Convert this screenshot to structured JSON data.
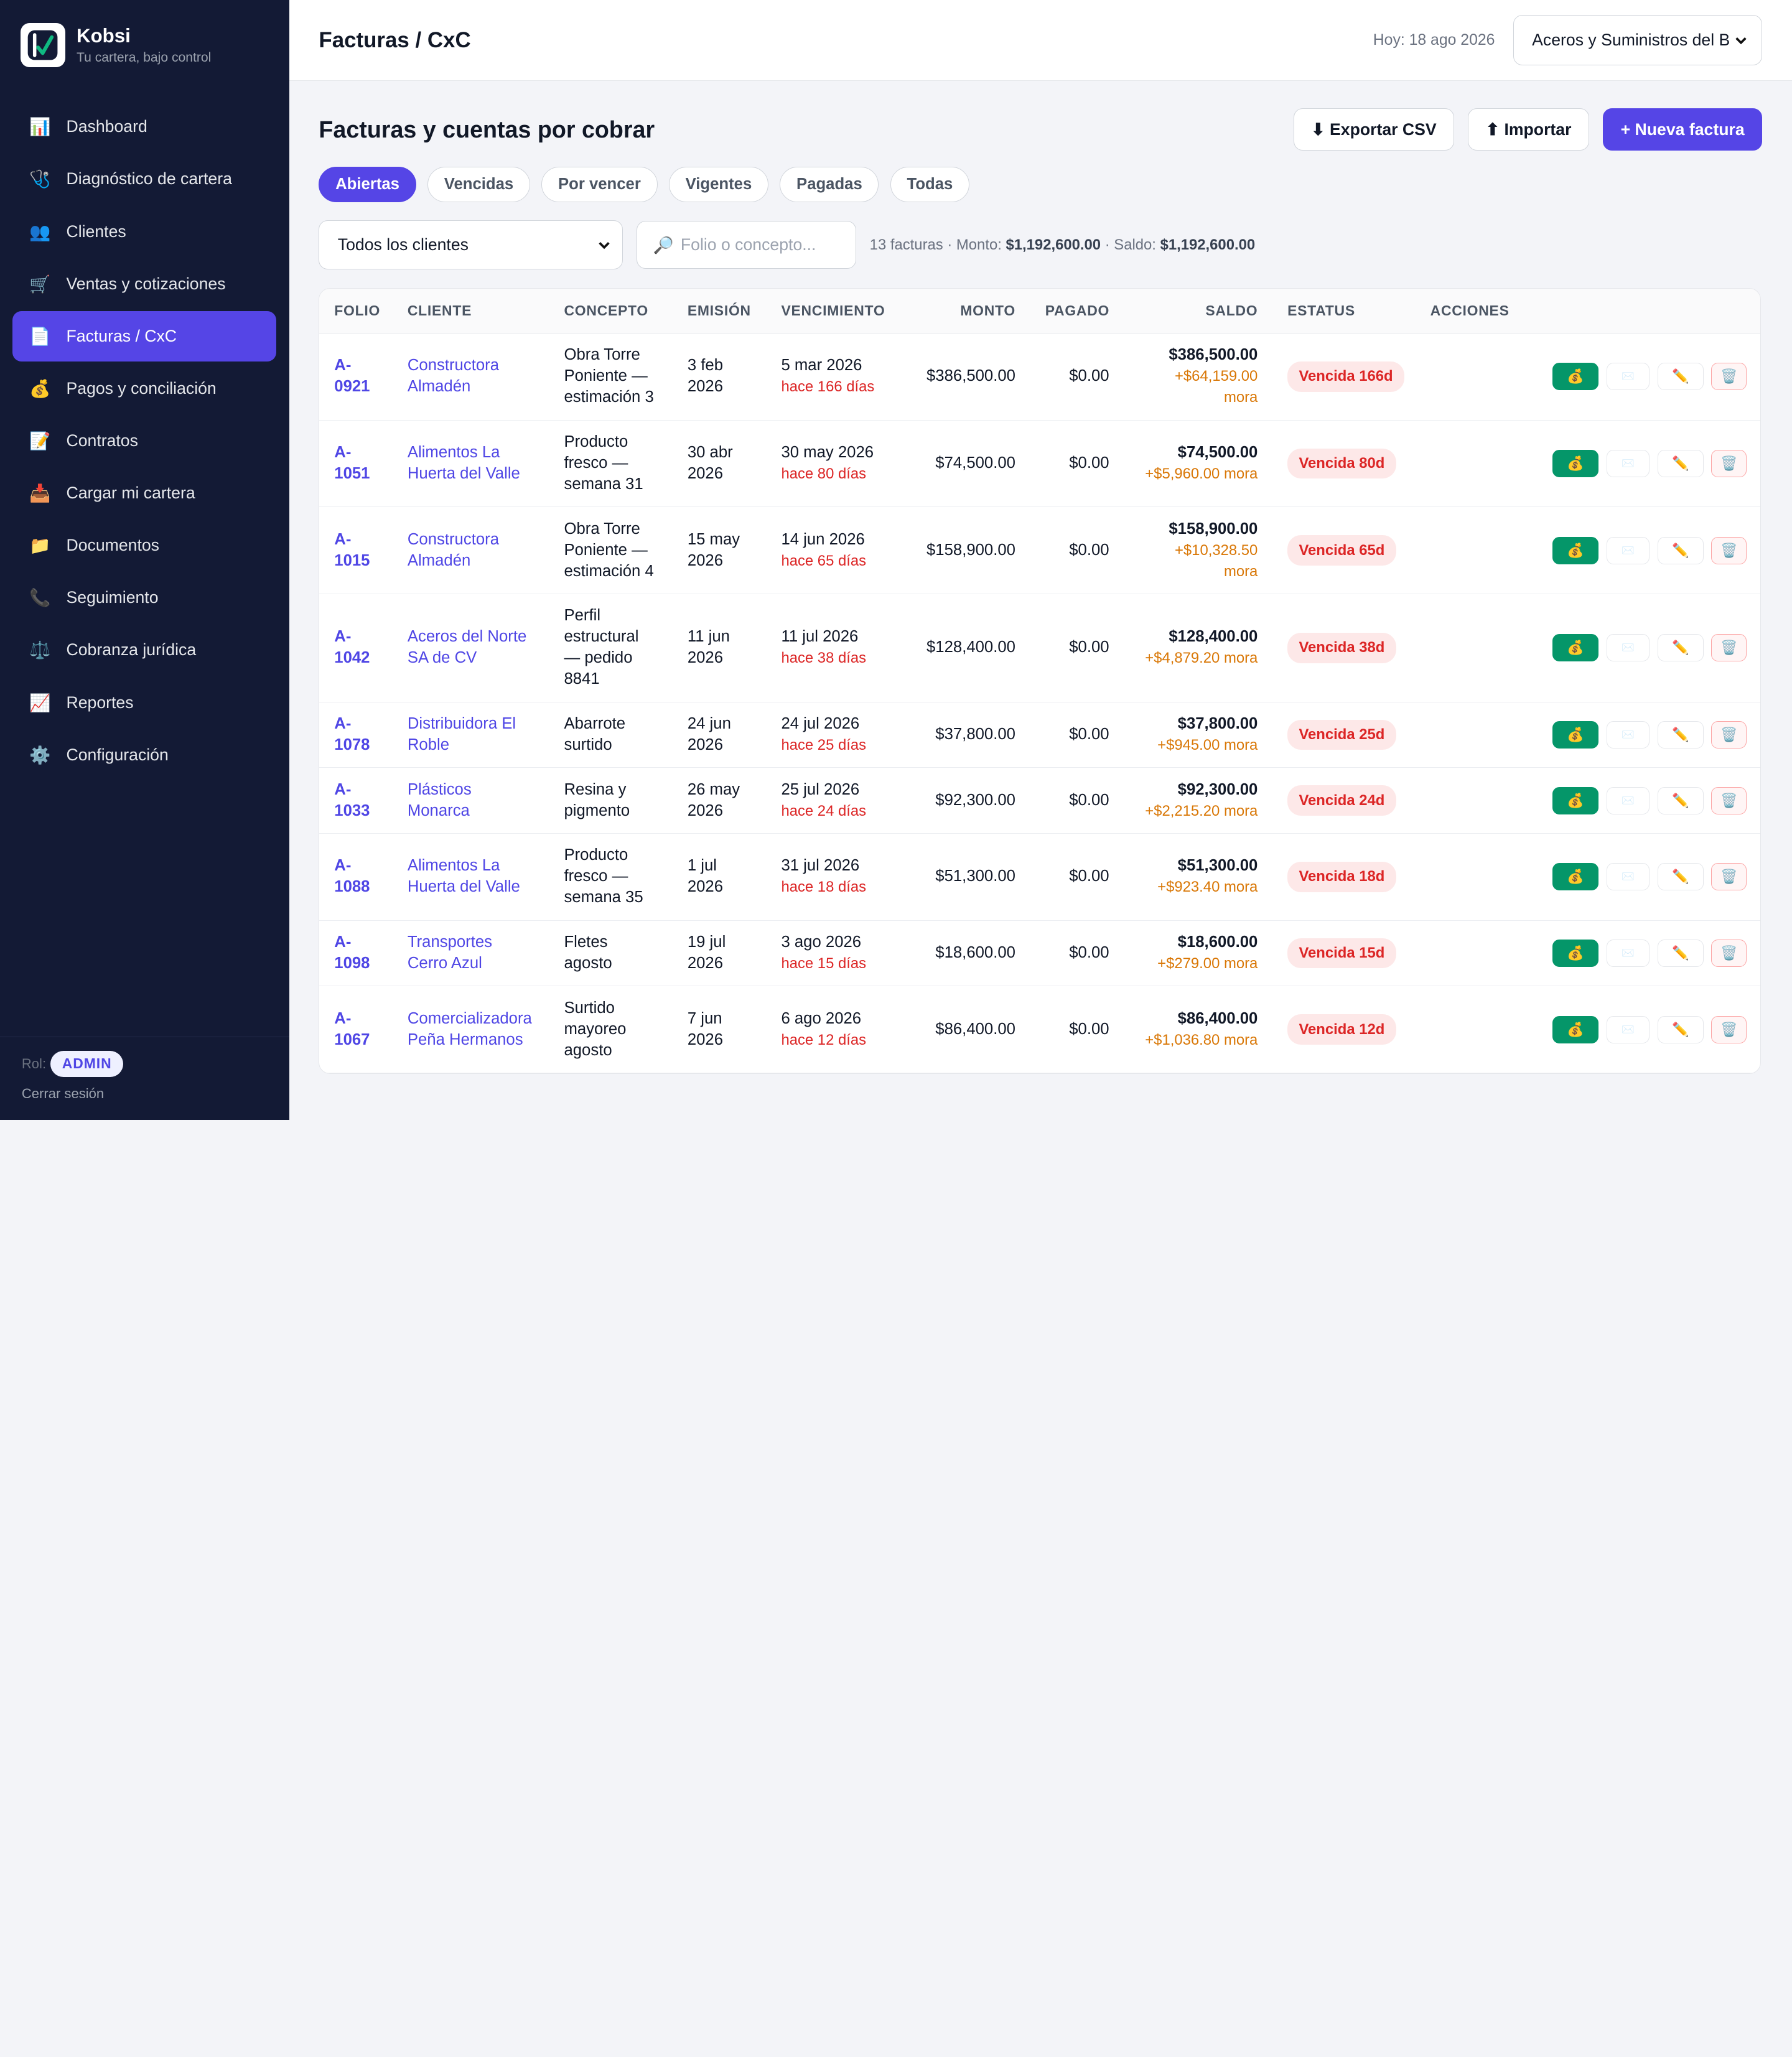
{
  "app": {
    "name": "Kobsi",
    "tagline": "Tu cartera, bajo control"
  },
  "sidebar": {
    "items": [
      {
        "label": "Dashboard",
        "icon": "📊",
        "icon_name": "bar-chart-icon",
        "active": false
      },
      {
        "label": "Diagnóstico de cartera",
        "icon": "🩺",
        "icon_name": "stethoscope-icon",
        "active": false
      },
      {
        "label": "Clientes",
        "icon": "👥",
        "icon_name": "users-icon",
        "active": false
      },
      {
        "label": "Ventas y cotizaciones",
        "icon": "🛒",
        "icon_name": "cart-icon",
        "active": false
      },
      {
        "label": "Facturas / CxC",
        "icon": "📄",
        "icon_name": "invoice-icon",
        "active": true
      },
      {
        "label": "Pagos y conciliación",
        "icon": "💰",
        "icon_name": "money-bag-icon",
        "active": false
      },
      {
        "label": "Contratos",
        "icon": "📝",
        "icon_name": "contract-icon",
        "active": false
      },
      {
        "label": "Cargar mi cartera",
        "icon": "📥",
        "icon_name": "inbox-tray-icon",
        "active": false
      },
      {
        "label": "Documentos",
        "icon": "📁",
        "icon_name": "folder-icon",
        "active": false
      },
      {
        "label": "Seguimiento",
        "icon": "📞",
        "icon_name": "phone-icon",
        "active": false
      },
      {
        "label": "Cobranza jurídica",
        "icon": "⚖️",
        "icon_name": "scales-icon",
        "active": false
      },
      {
        "label": "Reportes",
        "icon": "📈",
        "icon_name": "line-chart-icon",
        "active": false
      },
      {
        "label": "Configuración",
        "icon": "⚙️",
        "icon_name": "gear-icon",
        "active": false
      }
    ],
    "footer": {
      "role_label": "Rol:",
      "role": "ADMIN",
      "logout": "Cerrar sesión"
    }
  },
  "topbar": {
    "title": "Facturas / CxC",
    "today": "Hoy: 18 ago 2026",
    "company": "Aceros y Suministros del B"
  },
  "page": {
    "title": "Facturas y cuentas por cobrar",
    "buttons": {
      "export": "⬇ Exportar CSV",
      "import": "⬆ Importar",
      "new": "+ Nueva factura"
    },
    "tabs": [
      {
        "label": "Abiertas",
        "active": true
      },
      {
        "label": "Vencidas",
        "active": false
      },
      {
        "label": "Por vencer",
        "active": false
      },
      {
        "label": "Vigentes",
        "active": false
      },
      {
        "label": "Pagadas",
        "active": false
      },
      {
        "label": "Todas",
        "active": false
      }
    ],
    "client_filter": "Todos los clientes",
    "search_placeholder": "Folio o concepto...",
    "summary": {
      "count": "13 facturas · Monto: ",
      "monto": "$1,192,600.00",
      "sep": " · Saldo: ",
      "saldo": "$1,192,600.00"
    }
  },
  "table": {
    "columns": [
      "FOLIO",
      "CLIENTE",
      "CONCEPTO",
      "EMISIÓN",
      "VENCIMIENTO",
      "MONTO",
      "PAGADO",
      "SALDO",
      "ESTATUS",
      "ACCIONES"
    ],
    "rows": [
      {
        "folio": "A-0921",
        "cliente": "Constructora Almadén",
        "concepto": "Obra Torre Poniente — estimación 3",
        "emision": "3 feb 2026",
        "vencimiento": "5 mar 2026",
        "dias": "hace 166 días",
        "monto": "$386,500.00",
        "pagado": "$0.00",
        "saldo": "$386,500.00",
        "mora": "+$64,159.00 mora",
        "estatus": "Vencida 166d"
      },
      {
        "folio": "A-1051",
        "cliente": "Alimentos La Huerta del Valle",
        "concepto": "Producto fresco — semana 31",
        "emision": "30 abr 2026",
        "vencimiento": "30 may 2026",
        "dias": "hace 80 días",
        "monto": "$74,500.00",
        "pagado": "$0.00",
        "saldo": "$74,500.00",
        "mora": "+$5,960.00 mora",
        "estatus": "Vencida 80d"
      },
      {
        "folio": "A-1015",
        "cliente": "Constructora Almadén",
        "concepto": "Obra Torre Poniente — estimación 4",
        "emision": "15 may 2026",
        "vencimiento": "14 jun 2026",
        "dias": "hace 65 días",
        "monto": "$158,900.00",
        "pagado": "$0.00",
        "saldo": "$158,900.00",
        "mora": "+$10,328.50 mora",
        "estatus": "Vencida 65d"
      },
      {
        "folio": "A-1042",
        "cliente": "Aceros del Norte SA de CV",
        "concepto": "Perfil estructural — pedido 8841",
        "emision": "11 jun 2026",
        "vencimiento": "11 jul 2026",
        "dias": "hace 38 días",
        "monto": "$128,400.00",
        "pagado": "$0.00",
        "saldo": "$128,400.00",
        "mora": "+$4,879.20 mora",
        "estatus": "Vencida 38d"
      },
      {
        "folio": "A-1078",
        "cliente": "Distribuidora El Roble",
        "concepto": "Abarrote surtido",
        "emision": "24 jun 2026",
        "vencimiento": "24 jul 2026",
        "dias": "hace 25 días",
        "monto": "$37,800.00",
        "pagado": "$0.00",
        "saldo": "$37,800.00",
        "mora": "+$945.00 mora",
        "estatus": "Vencida 25d"
      },
      {
        "folio": "A-1033",
        "cliente": "Plásticos Monarca",
        "concepto": "Resina y pigmento",
        "emision": "26 may 2026",
        "vencimiento": "25 jul 2026",
        "dias": "hace 24 días",
        "monto": "$92,300.00",
        "pagado": "$0.00",
        "saldo": "$92,300.00",
        "mora": "+$2,215.20 mora",
        "estatus": "Vencida 24d"
      },
      {
        "folio": "A-1088",
        "cliente": "Alimentos La Huerta del Valle",
        "concepto": "Producto fresco — semana 35",
        "emision": "1 jul 2026",
        "vencimiento": "31 jul 2026",
        "dias": "hace 18 días",
        "monto": "$51,300.00",
        "pagado": "$0.00",
        "saldo": "$51,300.00",
        "mora": "+$923.40 mora",
        "estatus": "Vencida 18d"
      },
      {
        "folio": "A-1098",
        "cliente": "Transportes Cerro Azul",
        "concepto": "Fletes agosto",
        "emision": "19 jul 2026",
        "vencimiento": "3 ago 2026",
        "dias": "hace 15 días",
        "monto": "$18,600.00",
        "pagado": "$0.00",
        "saldo": "$18,600.00",
        "mora": "+$279.00 mora",
        "estatus": "Vencida 15d"
      },
      {
        "folio": "A-1067",
        "cliente": "Comercializadora Peña Hermanos",
        "concepto": "Surtido mayoreo agosto",
        "emision": "7 jun 2026",
        "vencimiento": "6 ago 2026",
        "dias": "hace 12 días",
        "monto": "$86,400.00",
        "pagado": "$0.00",
        "saldo": "$86,400.00",
        "mora": "+$1,036.80 mora",
        "estatus": "Vencida 12d"
      }
    ],
    "action_icons": {
      "pay": "💰",
      "mail": "✉️",
      "edit": "✏️",
      "delete": "🗑️"
    }
  },
  "colors": {
    "sidebar_bg": "#131a35",
    "accent": "#5545e6",
    "danger": "#dc2626",
    "warning": "#d97706",
    "success": "#059669"
  }
}
